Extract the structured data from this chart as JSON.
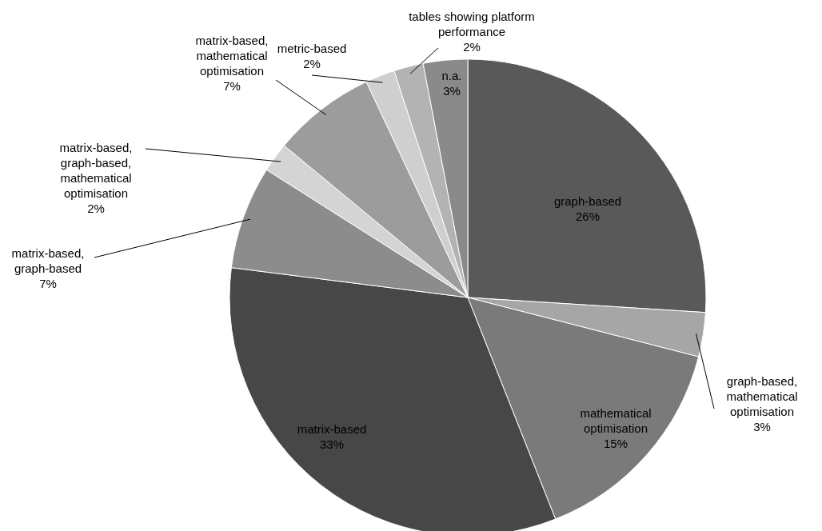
{
  "chart_data": {
    "type": "pie",
    "categories": [
      "graph-based",
      "graph-based, mathematical optimisation",
      "mathematical optimisation",
      "matrix-based",
      "matrix-based, graph-based",
      "matrix-based, graph-based, mathematical optimisation",
      "matrix-based, mathematical optimisation",
      "metric-based",
      "tables showing platform performance",
      "n.a."
    ],
    "values": [
      26,
      3,
      15,
      33,
      7,
      2,
      7,
      2,
      2,
      3
    ],
    "value_labels": [
      "26%",
      "3%",
      "15%",
      "33%",
      "7%",
      "2%",
      "7%",
      "2%",
      "2%",
      "3%"
    ],
    "colors": [
      "#595959",
      "#a6a6a6",
      "#7a7a7a",
      "#474747",
      "#8c8c8c",
      "#d4d4d4",
      "#9c9c9c",
      "#cfcfcf",
      "#b3b3b3",
      "#8a8a8a"
    ],
    "legend": false
  }
}
